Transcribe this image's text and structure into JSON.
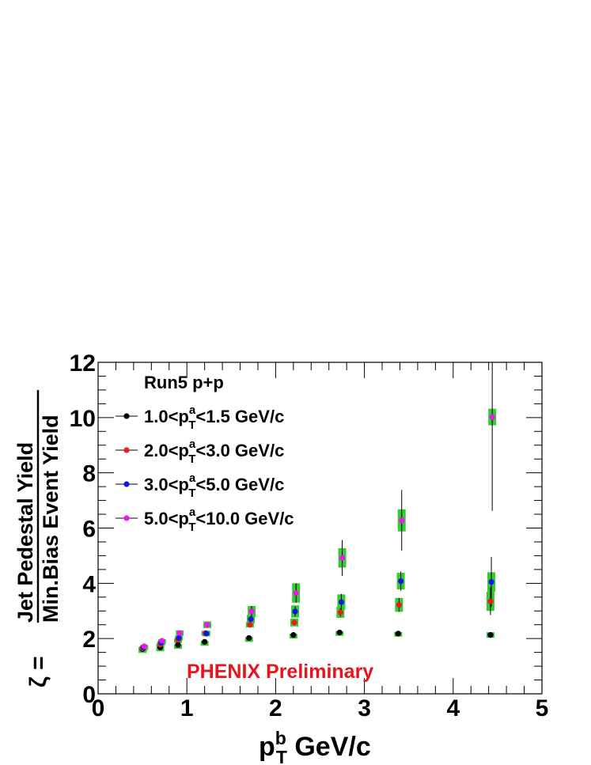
{
  "chart_data": {
    "type": "scatter",
    "title": "Run5 p+p",
    "xlabel": {
      "main": "p",
      "sup": "b",
      "sub": "T",
      "unit": " GeV/c"
    },
    "ylabel": {
      "prefix": "ζ =",
      "numerator": "Jet Pedestal Yield",
      "denominator": "Min.Bias Event Yield"
    },
    "xlim": [
      0,
      5
    ],
    "ylim": [
      0,
      12
    ],
    "x_ticks": [
      0,
      1,
      2,
      3,
      4,
      5
    ],
    "y_ticks": [
      0,
      2,
      4,
      6,
      8,
      10,
      12
    ],
    "x_tick_labels": [
      "0",
      "1",
      "2",
      "3",
      "4",
      "5"
    ],
    "y_tick_labels": [
      "0",
      "2",
      "4",
      "6",
      "8",
      "10",
      "12"
    ],
    "annotation": {
      "text": "PHENIX Preliminary",
      "color": "#e8141c"
    },
    "systematic_color": "#33cc33",
    "grid": false,
    "legend_position": "top-left",
    "series": [
      {
        "name": "1.0<p_T^a<1.5 GeV/c",
        "label": {
          "pre": "1.0<p",
          "sup": "a",
          "sub": "T",
          "post": "<1.5 GeV/c"
        },
        "color": "#000000",
        "x": [
          0.5,
          0.7,
          0.9,
          1.2,
          1.7,
          2.2,
          2.72,
          3.38,
          4.42
        ],
        "y": [
          1.62,
          1.68,
          1.77,
          1.88,
          2.02,
          2.13,
          2.22,
          2.18,
          2.13
        ],
        "err": [
          0.04,
          0.04,
          0.04,
          0.04,
          0.04,
          0.05,
          0.06,
          0.08,
          0.1
        ],
        "sys": [
          0.03,
          0.03,
          0.03,
          0.03,
          0.03,
          0.04,
          0.05,
          0.06,
          0.1
        ]
      },
      {
        "name": "2.0<p_T^a<3.0 GeV/c",
        "label": {
          "pre": "2.0<p",
          "sup": "a",
          "sub": "T",
          "post": "<3.0 GeV/c"
        },
        "color": "#e81e14",
        "x": [
          0.5,
          0.7,
          0.9,
          1.21,
          1.71,
          2.21,
          2.73,
          3.39,
          4.42
        ],
        "y": [
          1.65,
          1.78,
          1.95,
          2.2,
          2.5,
          2.58,
          2.95,
          3.22,
          3.35
        ],
        "err": [
          0.04,
          0.04,
          0.05,
          0.06,
          0.08,
          0.1,
          0.15,
          0.25,
          0.5
        ],
        "sys": [
          0.04,
          0.04,
          0.06,
          0.08,
          0.1,
          0.14,
          0.2,
          0.25,
          0.35
        ]
      },
      {
        "name": "3.0<p_T^a<5.0 GeV/c",
        "label": {
          "pre": "3.0<p",
          "sup": "a",
          "sub": "T",
          "post": "<5.0 GeV/c"
        },
        "color": "#1414e8",
        "x": [
          0.51,
          0.71,
          0.91,
          1.22,
          1.72,
          2.22,
          2.74,
          3.41,
          4.43
        ],
        "y": [
          1.68,
          1.85,
          2.02,
          2.18,
          2.7,
          2.98,
          3.32,
          4.08,
          4.05
        ],
        "err": [
          0.04,
          0.05,
          0.06,
          0.08,
          0.12,
          0.18,
          0.3,
          0.35,
          0.9
        ],
        "sys": [
          0.04,
          0.05,
          0.08,
          0.1,
          0.15,
          0.22,
          0.28,
          0.3,
          0.35
        ]
      },
      {
        "name": "5.0<p_T^a<10.0 GeV/c",
        "label": {
          "pre": "5.0<p",
          "sup": "a",
          "sub": "T",
          "post": "<10.0 GeV/c"
        },
        "color": "#f014f0",
        "x": [
          0.52,
          0.72,
          0.92,
          1.23,
          1.73,
          2.23,
          2.75,
          3.42,
          4.44
        ],
        "y": [
          1.72,
          1.92,
          2.2,
          2.5,
          2.98,
          3.65,
          4.92,
          6.28,
          10.02
        ],
        "err": [
          0.05,
          0.06,
          0.08,
          0.1,
          0.2,
          0.35,
          0.65,
          1.1,
          3.4
        ],
        "sys": [
          0.05,
          0.06,
          0.1,
          0.12,
          0.2,
          0.35,
          0.35,
          0.4,
          0.3
        ]
      }
    ]
  }
}
